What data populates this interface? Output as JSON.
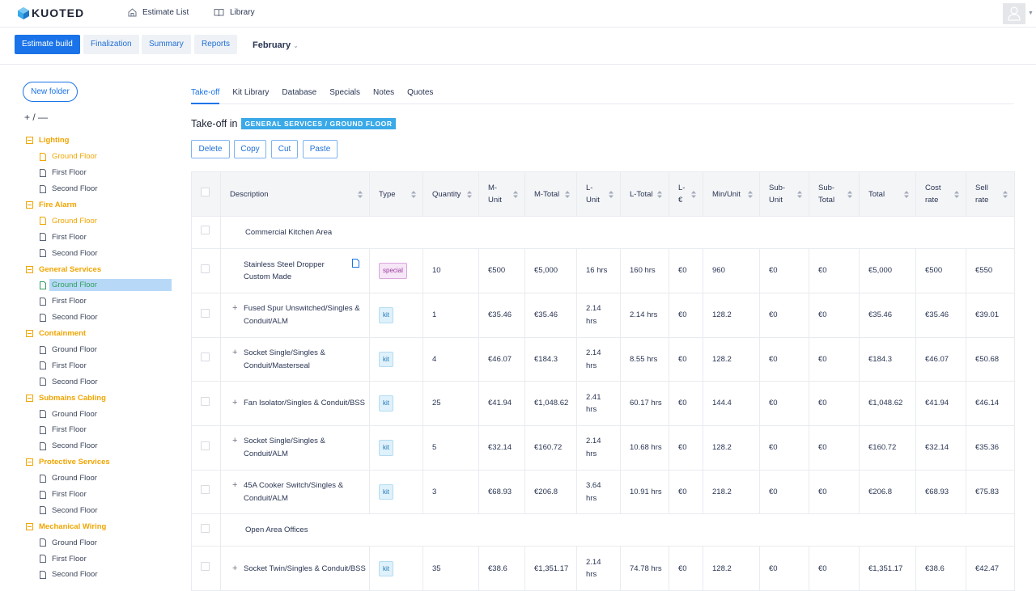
{
  "app": {
    "logo": "KUOTED"
  },
  "topnav": {
    "estimate_list": "Estimate List",
    "library": "Library"
  },
  "subtabs": [
    {
      "label": "Estimate build",
      "active": true
    },
    {
      "label": "Finalization",
      "active": false
    },
    {
      "label": "Summary",
      "active": false
    },
    {
      "label": "Reports",
      "active": false
    }
  ],
  "month": {
    "label": "February"
  },
  "sidebar": {
    "new_folder": "New folder",
    "expand_collapse": "+ / —",
    "folders": [
      {
        "name": "Lighting",
        "items": [
          {
            "label": "Ground Floor",
            "state": "highlighted"
          },
          {
            "label": "First Floor",
            "state": "normal"
          },
          {
            "label": "Second Floor",
            "state": "normal"
          }
        ]
      },
      {
        "name": "Fire Alarm",
        "items": [
          {
            "label": "Ground Floor",
            "state": "highlighted"
          },
          {
            "label": "First Floor",
            "state": "normal"
          },
          {
            "label": "Second Floor",
            "state": "normal"
          }
        ]
      },
      {
        "name": "General Services",
        "items": [
          {
            "label": "Ground Floor",
            "state": "selected"
          },
          {
            "label": "First Floor",
            "state": "normal"
          },
          {
            "label": "Second Floor",
            "state": "normal"
          }
        ]
      },
      {
        "name": "Containment",
        "items": [
          {
            "label": "Ground Floor",
            "state": "normal"
          },
          {
            "label": "First Floor",
            "state": "normal"
          },
          {
            "label": "Second Floor",
            "state": "normal"
          }
        ]
      },
      {
        "name": "Submains Cabling",
        "items": [
          {
            "label": "Ground Floor",
            "state": "normal"
          },
          {
            "label": "First Floor",
            "state": "normal"
          },
          {
            "label": "Second Floor",
            "state": "normal"
          }
        ]
      },
      {
        "name": "Protective Services",
        "items": [
          {
            "label": "Ground Floor",
            "state": "normal"
          },
          {
            "label": "First Floor",
            "state": "normal"
          },
          {
            "label": "Second Floor",
            "state": "normal"
          }
        ]
      },
      {
        "name": "Mechanical Wiring",
        "items": [
          {
            "label": "Ground Floor",
            "state": "normal"
          },
          {
            "label": "First Floor",
            "state": "normal"
          },
          {
            "label": "Second Floor",
            "state": "normal"
          }
        ]
      }
    ]
  },
  "content_tabs": [
    {
      "label": "Take-off",
      "active": true
    },
    {
      "label": "Kit Library",
      "active": false
    },
    {
      "label": "Database",
      "active": false
    },
    {
      "label": "Specials",
      "active": false
    },
    {
      "label": "Notes",
      "active": false
    },
    {
      "label": "Quotes",
      "active": false
    }
  ],
  "takeoff": {
    "title": "Take-off in",
    "location": "GENERAL SERVICES / GROUND FLOOR"
  },
  "actions": {
    "delete": "Delete",
    "copy": "Copy",
    "cut": "Cut",
    "paste": "Paste"
  },
  "table": {
    "columns": [
      "Description",
      "Type",
      "Quantity",
      "M-Unit",
      "M-Total",
      "L-Unit",
      "L-Total",
      "L-€",
      "Min/Unit",
      "Sub-Unit",
      "Sub-Total",
      "Total",
      "Cost rate",
      "Sell rate"
    ],
    "rows": [
      {
        "kind": "section",
        "description": "Commercial Kitchen Area"
      },
      {
        "kind": "item",
        "expandable": false,
        "has_doc": true,
        "description": "Stainless Steel Dropper Custom Made",
        "type": "special",
        "quantity": "10",
        "m_unit": "€500",
        "m_total": "€5,000",
        "l_unit": "16 hrs",
        "l_total": "160 hrs",
        "l_eur": "€0",
        "min_unit": "960",
        "sub_unit": "€0",
        "sub_total": "€0",
        "total": "€5,000",
        "cost_rate": "€500",
        "sell_rate": "€550"
      },
      {
        "kind": "item",
        "expandable": true,
        "has_doc": false,
        "description": "Fused Spur Unswitched/Singles & Conduit/ALM",
        "type": "kit",
        "quantity": "1",
        "m_unit": "€35.46",
        "m_total": "€35.46",
        "l_unit": "2.14 hrs",
        "l_total": "2.14 hrs",
        "l_eur": "€0",
        "min_unit": "128.2",
        "sub_unit": "€0",
        "sub_total": "€0",
        "total": "€35.46",
        "cost_rate": "€35.46",
        "sell_rate": "€39.01"
      },
      {
        "kind": "item",
        "expandable": true,
        "has_doc": false,
        "description": "Socket Single/Singles & Conduit/Masterseal",
        "type": "kit",
        "quantity": "4",
        "m_unit": "€46.07",
        "m_total": "€184.3",
        "l_unit": "2.14 hrs",
        "l_total": "8.55 hrs",
        "l_eur": "€0",
        "min_unit": "128.2",
        "sub_unit": "€0",
        "sub_total": "€0",
        "total": "€184.3",
        "cost_rate": "€46.07",
        "sell_rate": "€50.68"
      },
      {
        "kind": "item",
        "expandable": true,
        "has_doc": false,
        "description": "Fan Isolator/Singles & Conduit/BSS",
        "type": "kit",
        "quantity": "25",
        "m_unit": "€41.94",
        "m_total": "€1,048.62",
        "l_unit": "2.41 hrs",
        "l_total": "60.17 hrs",
        "l_eur": "€0",
        "min_unit": "144.4",
        "sub_unit": "€0",
        "sub_total": "€0",
        "total": "€1,048.62",
        "cost_rate": "€41.94",
        "sell_rate": "€46.14"
      },
      {
        "kind": "item",
        "expandable": true,
        "has_doc": false,
        "description": "Socket Single/Singles & Conduit/ALM",
        "type": "kit",
        "quantity": "5",
        "m_unit": "€32.14",
        "m_total": "€160.72",
        "l_unit": "2.14 hrs",
        "l_total": "10.68 hrs",
        "l_eur": "€0",
        "min_unit": "128.2",
        "sub_unit": "€0",
        "sub_total": "€0",
        "total": "€160.72",
        "cost_rate": "€32.14",
        "sell_rate": "€35.36"
      },
      {
        "kind": "item",
        "expandable": true,
        "has_doc": false,
        "description": "45A Cooker Switch/Singles & Conduit/ALM",
        "type": "kit",
        "quantity": "3",
        "m_unit": "€68.93",
        "m_total": "€206.8",
        "l_unit": "3.64 hrs",
        "l_total": "10.91 hrs",
        "l_eur": "€0",
        "min_unit": "218.2",
        "sub_unit": "€0",
        "sub_total": "€0",
        "total": "€206.8",
        "cost_rate": "€68.93",
        "sell_rate": "€75.83"
      },
      {
        "kind": "section",
        "description": "Open Area Offices"
      },
      {
        "kind": "item",
        "expandable": true,
        "has_doc": false,
        "description": "Socket Twin/Singles & Conduit/BSS",
        "type": "kit",
        "quantity": "35",
        "m_unit": "€38.6",
        "m_total": "€1,351.17",
        "l_unit": "2.14 hrs",
        "l_total": "74.78 hrs",
        "l_eur": "€0",
        "min_unit": "128.2",
        "sub_unit": "€0",
        "sub_total": "€0",
        "total": "€1,351.17",
        "cost_rate": "€38.6",
        "sell_rate": "€42.47"
      }
    ]
  },
  "colors": {
    "primary": "#1a73e8",
    "folder": "#f0a500",
    "badge": "#3aa9e8",
    "selected_bg": "#b7d9f7"
  }
}
